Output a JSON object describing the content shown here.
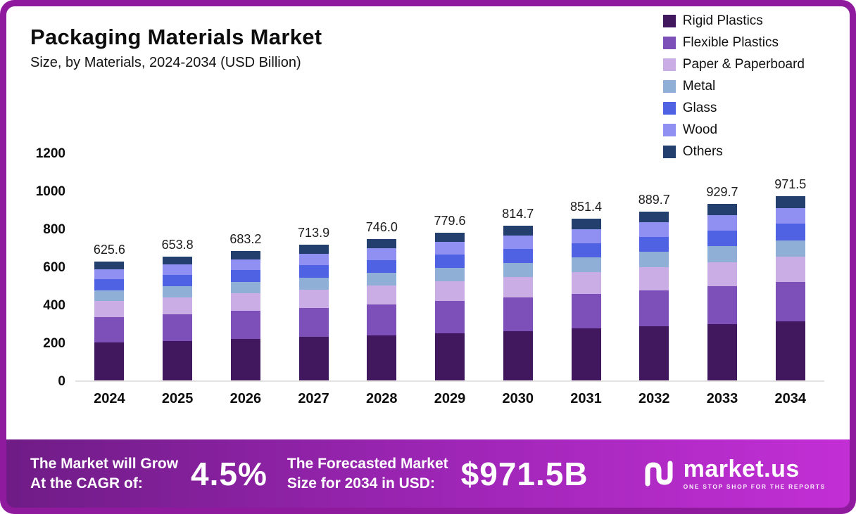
{
  "header": {
    "title": "Packaging Materials Market",
    "subtitle": "Size, by Materials, 2024-2034 (USD Billion)"
  },
  "legend": [
    {
      "label": "Rigid Plastics",
      "color": "#41175d"
    },
    {
      "label": "Flexible Plastics",
      "color": "#7d4fb8"
    },
    {
      "label": "Paper & Paperboard",
      "color": "#c9ade4"
    },
    {
      "label": "Metal",
      "color": "#8fafd6"
    },
    {
      "label": "Glass",
      "color": "#4f62e3"
    },
    {
      "label": "Wood",
      "color": "#8f90f2"
    },
    {
      "label": "Others",
      "color": "#223f6e"
    }
  ],
  "chart_data": {
    "type": "bar",
    "stacked": true,
    "title": "Packaging Materials Market Size, by Materials, 2024-2034 (USD Billion)",
    "xlabel": "",
    "ylabel": "USD Billion",
    "ylim": [
      0,
      1200
    ],
    "yticks": [
      0,
      200,
      400,
      600,
      800,
      1000,
      1200
    ],
    "grid": false,
    "legend_position": "top-right",
    "x": [
      "2024",
      "2025",
      "2026",
      "2027",
      "2028",
      "2029",
      "2030",
      "2031",
      "2032",
      "2033",
      "2034"
    ],
    "totals": [
      625.6,
      653.8,
      683.2,
      713.9,
      746.0,
      779.6,
      814.7,
      851.4,
      889.7,
      929.7,
      971.5
    ],
    "totals_labels": [
      "625.6",
      "653.8",
      "683.2",
      "713.9",
      "746.0",
      "779.6",
      "814.7",
      "851.4",
      "889.7",
      "929.7",
      "971.5"
    ],
    "series": [
      {
        "name": "Rigid Plastics",
        "color": "#41175d",
        "values": [
          200.2,
          209.2,
          218.6,
          228.4,
          238.7,
          249.5,
          260.7,
          272.4,
          284.7,
          297.5,
          310.9
        ]
      },
      {
        "name": "Flexible Plastics",
        "color": "#7d4fb8",
        "values": [
          134.5,
          140.6,
          146.9,
          153.5,
          160.4,
          167.6,
          175.2,
          183.1,
          191.3,
          199.9,
          208.9
        ]
      },
      {
        "name": "Paper & Paperboard",
        "color": "#c9ade4",
        "values": [
          84.5,
          88.3,
          92.2,
          96.4,
          100.7,
          105.2,
          110.0,
          114.9,
          120.1,
          125.5,
          131.2
        ]
      },
      {
        "name": "Metal",
        "color": "#8fafd6",
        "values": [
          56.3,
          58.8,
          61.5,
          64.3,
          67.1,
          70.2,
          73.3,
          76.6,
          80.1,
          83.7,
          87.4
        ]
      },
      {
        "name": "Glass",
        "color": "#4f62e3",
        "values": [
          56.3,
          58.8,
          61.5,
          64.3,
          67.1,
          70.2,
          73.3,
          76.6,
          80.1,
          83.7,
          87.4
        ]
      },
      {
        "name": "Wood",
        "color": "#8f90f2",
        "values": [
          53.2,
          55.6,
          58.1,
          60.7,
          63.4,
          66.3,
          69.2,
          72.4,
          75.6,
          79.0,
          82.6
        ]
      },
      {
        "name": "Others",
        "color": "#223f6e",
        "values": [
          40.7,
          42.5,
          44.4,
          46.4,
          48.5,
          50.7,
          53.0,
          55.3,
          57.8,
          60.4,
          63.1
        ]
      }
    ]
  },
  "banner": {
    "cagr_title_line1": "The Market will Grow",
    "cagr_title_line2": "At the CAGR of:",
    "cagr_value": "4.5%",
    "forecast_title_line1": "The Forecasted Market",
    "forecast_title_line2": "Size for 2034 in USD:",
    "forecast_value": "$971.5B",
    "brand_name": "market.us",
    "brand_tagline": "ONE STOP SHOP FOR THE REPORTS"
  },
  "colors": {
    "frame": "#8f1a9e",
    "banner_gradient_start": "#6f1c86",
    "banner_gradient_end": "#c22fd5"
  }
}
